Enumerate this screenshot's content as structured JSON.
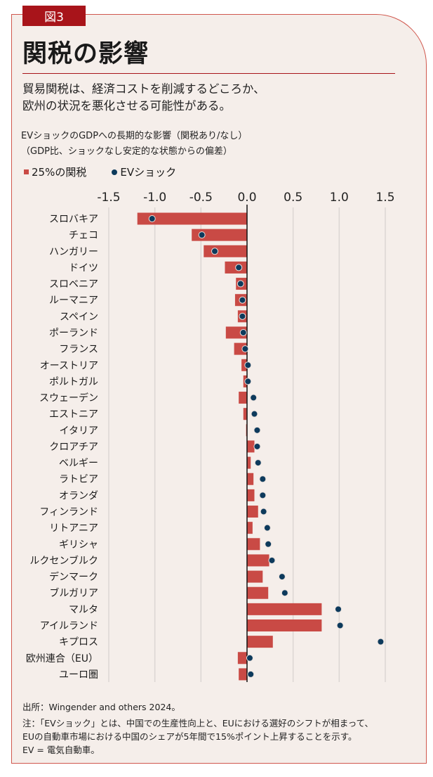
{
  "badge": "図3",
  "title": "関税の影響",
  "subtitle": [
    "貿易関税は、経済コストを削減するどころか、",
    "欧州の状況を悪化させる可能性がある。"
  ],
  "source": "出所：Wingender and others 2024。",
  "note_lines": [
    "注：「EVショック」とは、中国での生産性向上と、EUにおける選好のシフトが相まって、",
    "EUの自動車市場における中国のシェアが5年間で15%ポイント上昇することを示す。",
    "EV = 電気自動車。"
  ],
  "colors": {
    "bar": "#c94a45",
    "dot": "#0d3a5c",
    "accent": "#a8141a"
  },
  "chart_data": {
    "type": "bar",
    "orientation": "horizontal",
    "title": [
      "EVショックのGDPへの長期的な影響（関税あり/なし）",
      "（GDP比、ショックなし安定的な状態からの偏差）"
    ],
    "xlim": [
      -1.5,
      1.5
    ],
    "xticks": [
      "-1.5",
      "-1.0",
      "-0.5",
      "0.0",
      "0.5",
      "1.0",
      "1.5"
    ],
    "xtick_values": [
      -1.5,
      -1.0,
      -0.5,
      0,
      0.5,
      1.0,
      1.5
    ],
    "grid": true,
    "legend": {
      "position": "top-left",
      "entries": [
        "25%の関税",
        "EVショック"
      ]
    },
    "categories": [
      "スロバキア",
      "チェコ",
      "ハンガリー",
      "ドイツ",
      "スロベニア",
      "ルーマニア",
      "スペイン",
      "ポーランド",
      "フランス",
      "オーストリア",
      "ポルトガル",
      "スウェーデン",
      "エストニア",
      "イタリア",
      "クロアチア",
      "ベルギー",
      "ラトビア",
      "オランダ",
      "フィンランド",
      "リトアニア",
      "ギリシャ",
      "ルクセンブルク",
      "デンマーク",
      "ブルガリア",
      "マルタ",
      "アイルランド",
      "キプロス",
      "欧州連合（EU）",
      "ユーロ圏"
    ],
    "series": [
      {
        "name": "25%の関税",
        "type": "bar",
        "values": [
          -1.19,
          -0.6,
          -0.47,
          -0.24,
          -0.12,
          -0.13,
          -0.1,
          -0.23,
          -0.14,
          -0.06,
          -0.04,
          -0.09,
          -0.04,
          -0.01,
          0.08,
          0.04,
          0.07,
          0.08,
          0.12,
          0.06,
          0.14,
          0.24,
          0.17,
          0.23,
          0.81,
          0.81,
          0.28,
          -0.1,
          -0.09
        ]
      },
      {
        "name": "EVショック",
        "type": "scatter",
        "values": [
          -1.03,
          -0.49,
          -0.35,
          -0.09,
          -0.07,
          -0.05,
          -0.05,
          -0.04,
          -0.02,
          0.01,
          0.01,
          0.07,
          0.08,
          0.11,
          0.11,
          0.12,
          0.17,
          0.17,
          0.18,
          0.22,
          0.23,
          0.27,
          0.38,
          0.41,
          0.99,
          1.01,
          1.45,
          0.03,
          0.04
        ]
      }
    ]
  }
}
